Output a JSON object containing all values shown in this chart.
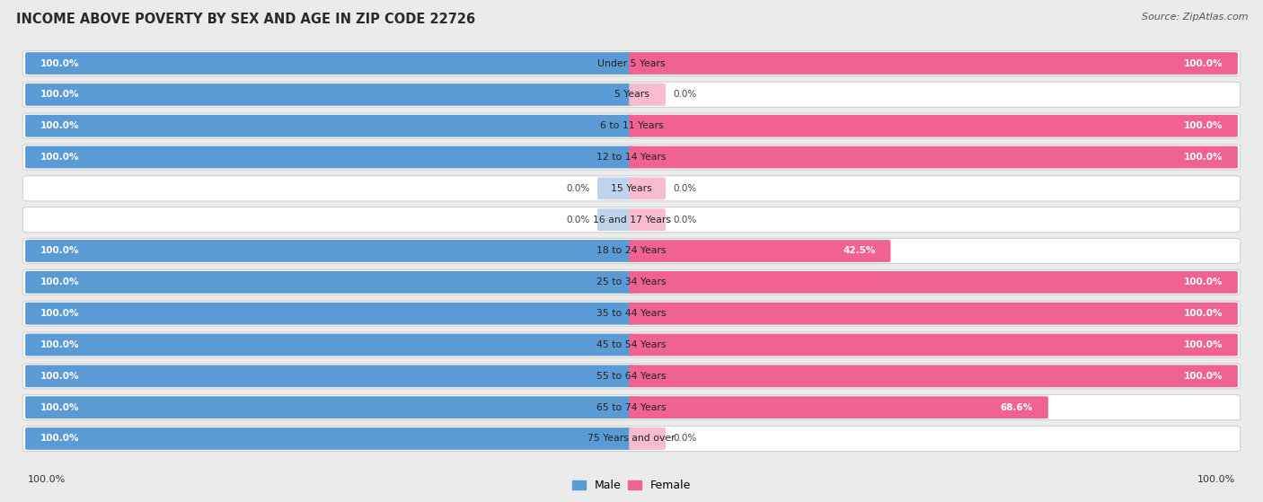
{
  "title": "INCOME ABOVE POVERTY BY SEX AND AGE IN ZIP CODE 22726",
  "source": "Source: ZipAtlas.com",
  "categories": [
    "Under 5 Years",
    "5 Years",
    "6 to 11 Years",
    "12 to 14 Years",
    "15 Years",
    "16 and 17 Years",
    "18 to 24 Years",
    "25 to 34 Years",
    "35 to 44 Years",
    "45 to 54 Years",
    "55 to 64 Years",
    "65 to 74 Years",
    "75 Years and over"
  ],
  "male_values": [
    100.0,
    100.0,
    100.0,
    100.0,
    0.0,
    0.0,
    100.0,
    100.0,
    100.0,
    100.0,
    100.0,
    100.0,
    100.0
  ],
  "female_values": [
    100.0,
    0.0,
    100.0,
    100.0,
    0.0,
    0.0,
    42.5,
    100.0,
    100.0,
    100.0,
    100.0,
    68.6,
    0.0
  ],
  "male_color": "#5B9BD5",
  "male_color_light": "#BDD4EC",
  "female_color": "#F06292",
  "female_color_light": "#F8BBD0",
  "bg_color": "#EBEBEB",
  "bar_bg_color": "#FFFFFF",
  "title_fontsize": 10.5,
  "source_fontsize": 8.0,
  "value_fontsize": 7.5,
  "cat_fontsize": 7.8
}
